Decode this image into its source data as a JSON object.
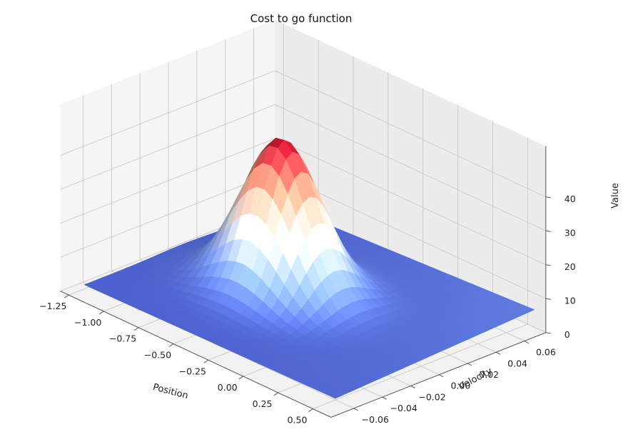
{
  "chart_data": {
    "type": "surface",
    "title": "Cost to go function",
    "xlabel": "Position",
    "ylabel": "Velocity",
    "zlabel": "Value",
    "xlim": [
      -1.2,
      0.6
    ],
    "ylim": [
      -0.07,
      0.07
    ],
    "zlim": [
      0,
      48
    ],
    "x_ticks": [
      -1.25,
      -1.0,
      -0.75,
      -0.5,
      -0.25,
      0.0,
      0.25,
      0.5
    ],
    "x_tick_labels": [
      "−1.25",
      "−1.00",
      "−0.75",
      "−0.50",
      "−0.25",
      "0.00",
      "0.25",
      "0.50"
    ],
    "y_ticks": [
      -0.06,
      -0.04,
      -0.02,
      0.0,
      0.02,
      0.04,
      0.06
    ],
    "y_tick_labels": [
      "−0.06",
      "−0.04",
      "−0.02",
      "0.00",
      "0.02",
      "0.04",
      "0.06"
    ],
    "z_ticks": [
      0,
      10,
      20,
      30,
      40
    ],
    "z_tick_labels": [
      "0",
      "10",
      "20",
      "30",
      "40"
    ],
    "colormap": "coolwarm",
    "surface_peak": {
      "x": -0.5,
      "y": 0.0,
      "z": 48
    },
    "corner_values": {
      "back_left": 3,
      "back_right": 7,
      "front_left": 3,
      "front_right": 4
    },
    "grid": true
  }
}
